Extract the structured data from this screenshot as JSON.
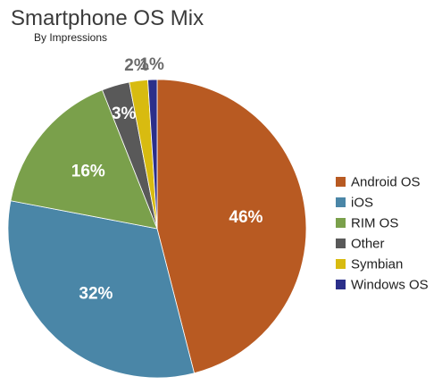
{
  "chart_data": {
    "type": "pie",
    "title": "Smartphone OS Mix",
    "subtitle": "By Impressions",
    "legend_position": "right",
    "slices": [
      {
        "name": "Android OS",
        "value": 46,
        "label": "46%",
        "color": "#b85a22"
      },
      {
        "name": "iOS",
        "value": 32,
        "label": "32%",
        "color": "#4a86a7"
      },
      {
        "name": "RIM OS",
        "value": 16,
        "label": "16%",
        "color": "#7aa04b"
      },
      {
        "name": "Other",
        "value": 3,
        "label": "3%",
        "color": "#595959"
      },
      {
        "name": "Symbian",
        "value": 2,
        "label": "2%",
        "color": "#d8bb10"
      },
      {
        "name": "Windows OS",
        "value": 1,
        "label": "1%",
        "color": "#2b2f8a"
      }
    ]
  }
}
